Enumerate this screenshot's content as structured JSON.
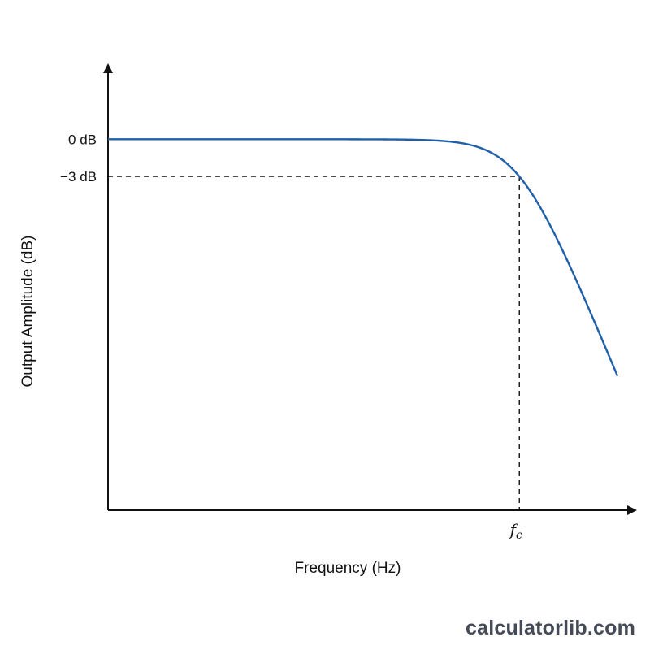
{
  "chart_data": {
    "type": "line",
    "title": "",
    "xlabel": "Frequency (Hz)",
    "ylabel": "Output Amplitude (dB)",
    "x_scale": "log",
    "y_ticks": [
      {
        "label": "0 dB",
        "value": 0
      },
      {
        "label": "−3 dB",
        "value": -3
      }
    ],
    "x_ticks": [
      {
        "label": "f",
        "sub": "c",
        "value": 1
      }
    ],
    "ylim": [
      -30,
      6
    ],
    "xlim": [
      0.01,
      3
    ],
    "series": [
      {
        "type": "butterworth-lowpass-response",
        "cutoff": 1,
        "passband_db": 0,
        "color": "#1f5faa"
      }
    ],
    "guides": [
      {
        "style": "dashed",
        "from": [
          0.01,
          -3
        ],
        "to": [
          1,
          -3
        ]
      },
      {
        "style": "dashed",
        "from": [
          1,
          -3
        ],
        "to": [
          1,
          -30
        ]
      }
    ],
    "grid": false,
    "legend": "none"
  },
  "watermark": "calculatorlib.com"
}
